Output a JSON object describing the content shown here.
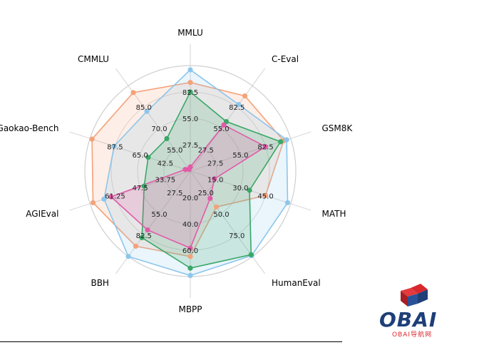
{
  "chart_data": {
    "type": "radar",
    "axes": [
      "MMLU",
      "C-Eval",
      "GSM8K",
      "MATH",
      "HumanEval",
      "MBPP",
      "BBH",
      "AGIEval",
      "Gaokao-Bench",
      "CMMLU"
    ],
    "rings": [
      [
        "27.5",
        "55.0",
        "82.5"
      ],
      [
        "27.5",
        "55.0",
        "82.5"
      ],
      [
        "27.5",
        "55.0",
        "82.5"
      ],
      [
        "15.0",
        "30.0",
        "45.0"
      ],
      [
        "25.0",
        "50.0",
        "75.0"
      ],
      [
        "20.0",
        "40.0",
        "60.0"
      ],
      [
        "27.5",
        "55.0",
        "82.5"
      ],
      [
        "33.75",
        "47.5",
        "61.25"
      ],
      [
        "42.5",
        "65.0",
        "87.5"
      ],
      [
        "55.0",
        "70.0",
        "85.0"
      ]
    ],
    "series": [
      {
        "color": "#f4a27a",
        "fill": "#f4a27a",
        "values": [
          0.84,
          0.88,
          0.93,
          0.75,
          0.42,
          0.81,
          0.88,
          0.97,
          0.98,
          0.92
        ]
      },
      {
        "color": "#8cc6ec",
        "fill": "#8cc6ec",
        "values": [
          0.96,
          0.78,
          0.96,
          0.97,
          0.99,
          0.99,
          1.0,
          0.86,
          0.76,
          0.7
        ]
      },
      {
        "color": "#3aa867",
        "fill": "#3aa867",
        "values": [
          0.75,
          0.58,
          0.9,
          0.59,
          0.98,
          0.92,
          0.78,
          0.46,
          0.42,
          0.38
        ]
      },
      {
        "color": "#e25aa8",
        "fill": "#e25aa8",
        "values": [
          0.04,
          0.54,
          0.75,
          0.24,
          0.32,
          0.73,
          0.69,
          0.79,
          0.05,
          0.02
        ]
      }
    ]
  },
  "logo": {
    "name": "OBAI",
    "subtitle": "OBAI导航网"
  }
}
